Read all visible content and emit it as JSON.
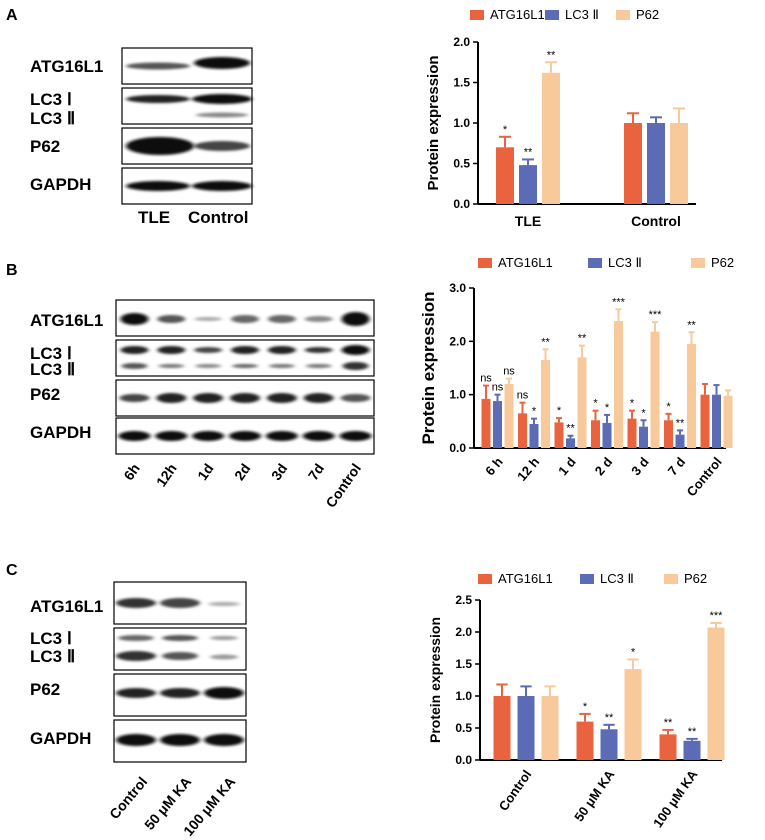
{
  "panels": [
    {
      "letter": "A",
      "blot": {
        "rows": [
          "ATG16L1",
          "LC3 Ⅰ",
          "LC3 Ⅱ",
          "P62",
          "GAPDH"
        ],
        "lanes": [
          "TLE",
          "Control"
        ]
      }
    },
    {
      "letter": "B",
      "blot": {
        "rows": [
          "ATG16L1",
          "LC3 Ⅰ",
          "LC3 Ⅱ",
          "P62",
          "GAPDH"
        ],
        "lanes": [
          "6h",
          "12h",
          "1d",
          "2d",
          "3d",
          "7d",
          "Control"
        ]
      }
    },
    {
      "letter": "C",
      "blot": {
        "rows": [
          "ATG16L1",
          "LC3 Ⅰ",
          "LC3 Ⅱ",
          "P62",
          "GAPDH"
        ],
        "lanes": [
          "Control",
          "50 μM KA",
          "100 μM KA"
        ]
      }
    }
  ],
  "colors": {
    "ATG16L1": "#e8633e",
    "LC3 Ⅱ": "#5b6bb5",
    "P62": "#f8c99a"
  },
  "chart_data": [
    {
      "type": "bar",
      "ylabel": "Protein expression",
      "ylim": [
        0,
        2.0
      ],
      "yticks": [
        "0.0",
        "0.5",
        "1.0",
        "1.5",
        "2.0"
      ],
      "categories": [
        "TLE",
        "Control"
      ],
      "series": [
        {
          "name": "ATG16L1",
          "values": [
            0.7,
            1.0
          ],
          "errors": [
            0.13,
            0.12
          ],
          "sig": [
            "*",
            ""
          ]
        },
        {
          "name": "LC3 Ⅱ",
          "values": [
            0.48,
            1.0
          ],
          "errors": [
            0.07,
            0.07
          ],
          "sig": [
            "**",
            ""
          ]
        },
        {
          "name": "P62",
          "values": [
            1.62,
            1.0
          ],
          "errors": [
            0.13,
            0.18
          ],
          "sig": [
            "**",
            ""
          ]
        }
      ],
      "legend": "top"
    },
    {
      "type": "bar",
      "ylabel": "Protein expression",
      "ylim": [
        0,
        3.0
      ],
      "yticks": [
        "0.0",
        "1.0",
        "2.0",
        "3.0"
      ],
      "categories": [
        "6 h",
        "12 h",
        "1 d",
        "2 d",
        "3 d",
        "7 d",
        "Control"
      ],
      "series": [
        {
          "name": "ATG16L1",
          "values": [
            0.92,
            0.65,
            0.48,
            0.52,
            0.55,
            0.52,
            1.0
          ],
          "errors": [
            0.25,
            0.2,
            0.08,
            0.18,
            0.15,
            0.12,
            0.2
          ],
          "sig": [
            "ns",
            "ns",
            "*",
            "*",
            "*",
            "*",
            ""
          ]
        },
        {
          "name": "LC3 Ⅱ",
          "values": [
            0.88,
            0.45,
            0.18,
            0.47,
            0.4,
            0.25,
            1.0
          ],
          "errors": [
            0.12,
            0.1,
            0.05,
            0.15,
            0.12,
            0.08,
            0.18
          ],
          "sig": [
            "ns",
            "*",
            "**",
            "*",
            "*",
            "**",
            ""
          ]
        },
        {
          "name": "P62",
          "values": [
            1.2,
            1.65,
            1.7,
            2.38,
            2.18,
            1.95,
            0.98
          ],
          "errors": [
            0.1,
            0.2,
            0.22,
            0.22,
            0.18,
            0.22,
            0.1
          ],
          "sig": [
            "ns",
            "**",
            "**",
            "***",
            "***",
            "**",
            ""
          ]
        }
      ],
      "legend": "top"
    },
    {
      "type": "bar",
      "ylabel": "Protein expression",
      "ylim": [
        0,
        2.5
      ],
      "yticks": [
        "0.0",
        "0.5",
        "1.0",
        "1.5",
        "2.0",
        "2.5"
      ],
      "categories": [
        "Control",
        "50 μM KA",
        "100 μM KA"
      ],
      "series": [
        {
          "name": "ATG16L1",
          "values": [
            1.0,
            0.6,
            0.4
          ],
          "errors": [
            0.18,
            0.12,
            0.07
          ],
          "sig": [
            "",
            "*",
            "**"
          ]
        },
        {
          "name": "LC3 Ⅱ",
          "values": [
            1.0,
            0.48,
            0.3
          ],
          "errors": [
            0.15,
            0.07,
            0.03
          ],
          "sig": [
            "",
            "**",
            "**"
          ]
        },
        {
          "name": "P62",
          "values": [
            1.0,
            1.42,
            2.07
          ],
          "errors": [
            0.15,
            0.15,
            0.07
          ],
          "sig": [
            "",
            "*",
            "***"
          ]
        }
      ],
      "legend": "top"
    }
  ]
}
